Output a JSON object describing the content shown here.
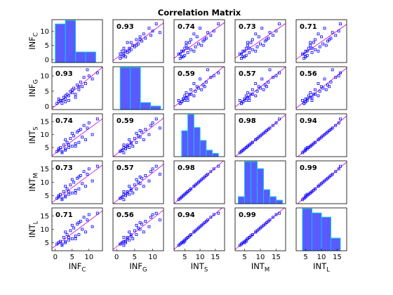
{
  "chart_data": {
    "type": "scatter-matrix",
    "title": "Correlation Matrix",
    "variables": [
      {
        "key": "INF_C",
        "base": "INF",
        "sub": "C",
        "lim": [
          -1,
          14
        ],
        "ticks": [
          0,
          5,
          10
        ],
        "bins": [
          0,
          3,
          6,
          9,
          12
        ],
        "counts": [
          11,
          12,
          3,
          3
        ]
      },
      {
        "key": "INF_G",
        "base": "INF",
        "sub": "G",
        "lim": [
          -1,
          13
        ],
        "ticks": [
          0,
          5,
          10
        ],
        "bins": [
          1,
          3.8,
          6.6,
          9.4,
          12.2
        ],
        "counts": [
          12,
          12,
          2,
          1
        ]
      },
      {
        "key": "INT_S",
        "base": "INT",
        "sub": "S",
        "lim": [
          1.5,
          18
        ],
        "ticks": [
          5,
          10,
          15
        ],
        "bins": [
          4,
          6,
          8,
          10,
          12,
          14,
          16
        ],
        "counts": [
          8,
          13,
          9,
          5,
          2,
          1
        ]
      },
      {
        "key": "INT_M",
        "base": "INT",
        "sub": "M",
        "lim": [
          2,
          18
        ],
        "ticks": [
          5,
          10,
          15
        ],
        "bins": [
          3,
          5,
          7,
          9,
          11,
          13,
          15,
          17
        ],
        "counts": [
          2,
          12,
          12,
          10,
          4,
          2,
          1
        ]
      },
      {
        "key": "INT_L",
        "base": "INT",
        "sub": "L",
        "lim": [
          2,
          18
        ],
        "ticks": [
          5,
          10,
          15
        ],
        "bins": [
          4,
          7,
          10,
          13,
          16
        ],
        "counts": [
          10,
          9,
          8,
          3
        ]
      }
    ],
    "correlations": [
      [
        null,
        "0.93",
        "0.74",
        "0.73",
        "0.71"
      ],
      [
        "0.93",
        null,
        "0.59",
        "0.57",
        "0.56"
      ],
      [
        "0.74",
        "0.59",
        null,
        "0.98",
        "0.94"
      ],
      [
        "0.73",
        "0.57",
        "0.98",
        null,
        "0.99"
      ],
      [
        "0.71",
        "0.56",
        "0.94",
        "0.99",
        null
      ]
    ],
    "observations": [
      [
        0.5,
        1.0,
        3.5,
        4.0,
        4.5
      ],
      [
        1.0,
        1.5,
        4.0,
        4.5,
        5.0
      ],
      [
        1.5,
        2.0,
        5.0,
        5.5,
        5.5
      ],
      [
        2.0,
        2.0,
        3.0,
        3.5,
        4.0
      ],
      [
        2.5,
        3.0,
        6.0,
        6.5,
        7.0
      ],
      [
        3.0,
        2.5,
        4.5,
        5.0,
        5.5
      ],
      [
        3.5,
        4.0,
        7.0,
        7.5,
        8.0
      ],
      [
        4.0,
        3.5,
        5.0,
        5.5,
        6.0
      ],
      [
        4.5,
        5.0,
        8.5,
        9.0,
        9.5
      ],
      [
        5.0,
        4.5,
        5.5,
        6.0,
        6.5
      ],
      [
        5.5,
        6.0,
        9.5,
        10.0,
        10.5
      ],
      [
        6.0,
        4.0,
        6.5,
        7.0,
        7.5
      ],
      [
        6.5,
        7.0,
        11.0,
        11.5,
        12.0
      ],
      [
        7.0,
        5.5,
        7.0,
        7.5,
        8.0
      ],
      [
        7.5,
        8.0,
        12.0,
        12.5,
        13.0
      ],
      [
        8.0,
        6.5,
        9.0,
        9.5,
        10.0
      ],
      [
        8.5,
        9.5,
        13.5,
        14.0,
        14.5
      ],
      [
        9.0,
        7.5,
        8.0,
        8.5,
        9.0
      ],
      [
        10.0,
        10.0,
        14.5,
        15.0,
        15.5
      ],
      [
        11.0,
        9.0,
        10.0,
        10.5,
        11.0
      ],
      [
        12.5,
        11.0,
        16.0,
        16.0,
        16.0
      ],
      [
        1.0,
        2.5,
        4.5,
        5.0,
        5.0
      ],
      [
        2.0,
        1.0,
        3.5,
        4.0,
        4.5
      ],
      [
        3.0,
        3.5,
        8.0,
        8.5,
        9.0
      ],
      [
        4.0,
        2.0,
        6.0,
        6.5,
        7.0
      ],
      [
        5.0,
        5.5,
        10.5,
        11.0,
        11.5
      ],
      [
        6.0,
        3.0,
        5.5,
        6.0,
        6.5
      ],
      [
        7.0,
        6.5,
        11.5,
        12.0,
        12.5
      ],
      [
        3.0,
        1.5,
        4.0,
        4.5,
        5.0
      ],
      [
        9.5,
        12.0,
        12.5,
        13.0,
        13.5
      ]
    ],
    "colors": {
      "points": "#0000ff",
      "fit_line": "#cc00cc",
      "hist_fill": "#5a5aff",
      "hist_edge": "#00ccee",
      "frame": "#000000"
    }
  }
}
